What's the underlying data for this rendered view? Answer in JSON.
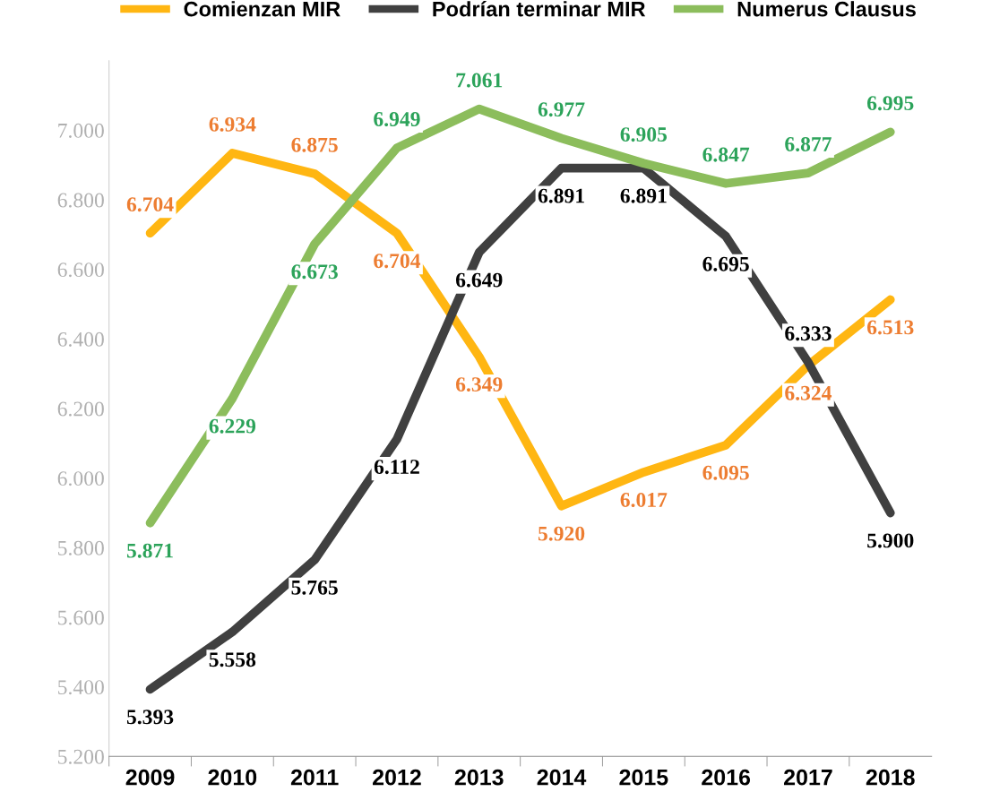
{
  "chart_data": {
    "type": "line",
    "categories": [
      "2009",
      "2010",
      "2011",
      "2012",
      "2013",
      "2014",
      "2015",
      "2016",
      "2017",
      "2018"
    ],
    "series": [
      {
        "name": "Comienzan MIR",
        "color": "#ffb612",
        "values": [
          6704,
          6934,
          6875,
          6704,
          6349,
          5920,
          6017,
          6095,
          6324,
          6513
        ],
        "value_labels": [
          "6.704",
          "6.934",
          "6.875",
          "6.704",
          "6.349",
          "5.920",
          "6.017",
          "6.095",
          "6.324",
          "6.513"
        ]
      },
      {
        "name": "Podrían terminar MIR",
        "color": "#404040",
        "values": [
          5393,
          5558,
          5765,
          6112,
          6649,
          6891,
          6891,
          6695,
          6333,
          5900
        ],
        "value_labels": [
          "5.393",
          "5.558",
          "5.765",
          "6.112",
          "6.649",
          "6.891",
          "6.891",
          "6.695",
          "6.333",
          "5.900"
        ]
      },
      {
        "name": "Numerus Clausus",
        "color": "#8cbd5c",
        "values": [
          5871,
          6229,
          6673,
          6949,
          7061,
          6977,
          6905,
          6847,
          6877,
          6995
        ],
        "value_labels": [
          "5.871",
          "6.229",
          "6.673",
          "6.949",
          "7.061",
          "6.977",
          "6.905",
          "6.847",
          "6.877",
          "6.995"
        ]
      }
    ],
    "ylim": [
      5200,
      7200
    ],
    "yticks": [
      {
        "value": 5200,
        "label": "5.200"
      },
      {
        "value": 5400,
        "label": "5.400"
      },
      {
        "value": 5600,
        "label": "5.600"
      },
      {
        "value": 5800,
        "label": "5.800"
      },
      {
        "value": 6000,
        "label": "6.000"
      },
      {
        "value": 6200,
        "label": "6.200"
      },
      {
        "value": 6400,
        "label": "6.400"
      },
      {
        "value": 6600,
        "label": "6.600"
      },
      {
        "value": 6800,
        "label": "6.800"
      },
      {
        "value": 7000,
        "label": "7.000"
      }
    ],
    "legend": "top",
    "grid": false,
    "marker": "none",
    "line_style": "solid"
  }
}
